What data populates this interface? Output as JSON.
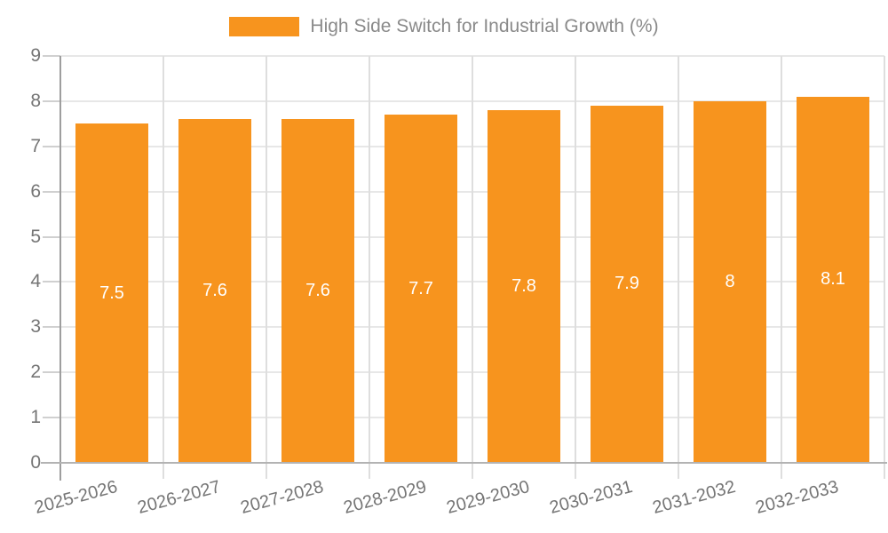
{
  "chart_data": {
    "type": "bar",
    "title": "High Side Switch for Industrial Growth (%)",
    "legend": {
      "label": "High Side Switch for Industrial Growth (%)",
      "position": "top-center",
      "swatch_color": "#F7941E"
    },
    "categories": [
      "2025-2026",
      "2026-2027",
      "2027-2028",
      "2028-2029",
      "2029-2030",
      "2030-2031",
      "2031-2032",
      "2032-2033"
    ],
    "series": [
      {
        "name": "High Side Switch for Industrial Growth (%)",
        "values": [
          7.5,
          7.6,
          7.6,
          7.7,
          7.8,
          7.9,
          8,
          8.1
        ]
      }
    ],
    "bar_labels": [
      "7.5",
      "7.6",
      "7.6",
      "7.7",
      "7.8",
      "7.9",
      "8",
      "8.1"
    ],
    "xlabel": "",
    "ylabel": "",
    "ylim": [
      0,
      9
    ],
    "yticks": [
      0,
      1,
      2,
      3,
      4,
      5,
      6,
      7,
      8,
      9
    ],
    "xlabel_rotation_deg": -15,
    "grid": "horizontal and vertical, light gray",
    "bar_label_position": "center of bar, white",
    "colors": {
      "bar": "#F7941E",
      "bar_label": "#FFFFFF",
      "axis_text": "#757575",
      "legend_text": "#8A8A8A",
      "gridline": "#E7E7E7",
      "vgridline": "#DEDEDE",
      "tick": "#D0D0D0",
      "axis_line": "#9E9E9E",
      "baseline": "#B3B3B3",
      "background": "#FFFFFF"
    }
  }
}
